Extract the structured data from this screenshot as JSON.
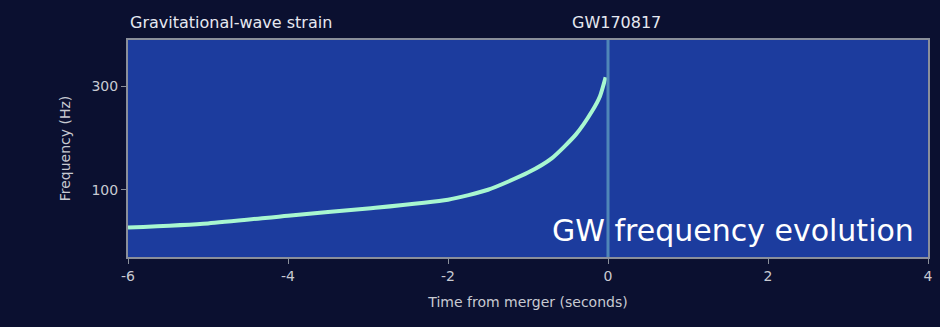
{
  "chart_data": {
    "type": "line",
    "title": "GW170817",
    "subtitle": "Gravitational-wave strain",
    "x_label": "Time from merger (seconds)",
    "y_label": "Frequency (Hz)",
    "annotations": [
      "GW frequency evolution"
    ],
    "x": [
      -6,
      -5,
      -4,
      -3,
      -2,
      -1.5,
      -1,
      -0.7,
      -0.4,
      -0.2,
      -0.1,
      -0.03
    ],
    "values": [
      67,
      70,
      76,
      82,
      90,
      100,
      120,
      140,
      180,
      230,
      270,
      330
    ],
    "color": "#a8f7d0",
    "vlines": [
      0
    ],
    "xlim": [
      -6,
      4
    ],
    "xticks": [
      -6,
      -4,
      -2,
      0,
      2,
      4
    ],
    "ylim": [
      49,
      490
    ],
    "yticks": [
      100,
      300
    ],
    "log": "y",
    "grid": false
  }
}
